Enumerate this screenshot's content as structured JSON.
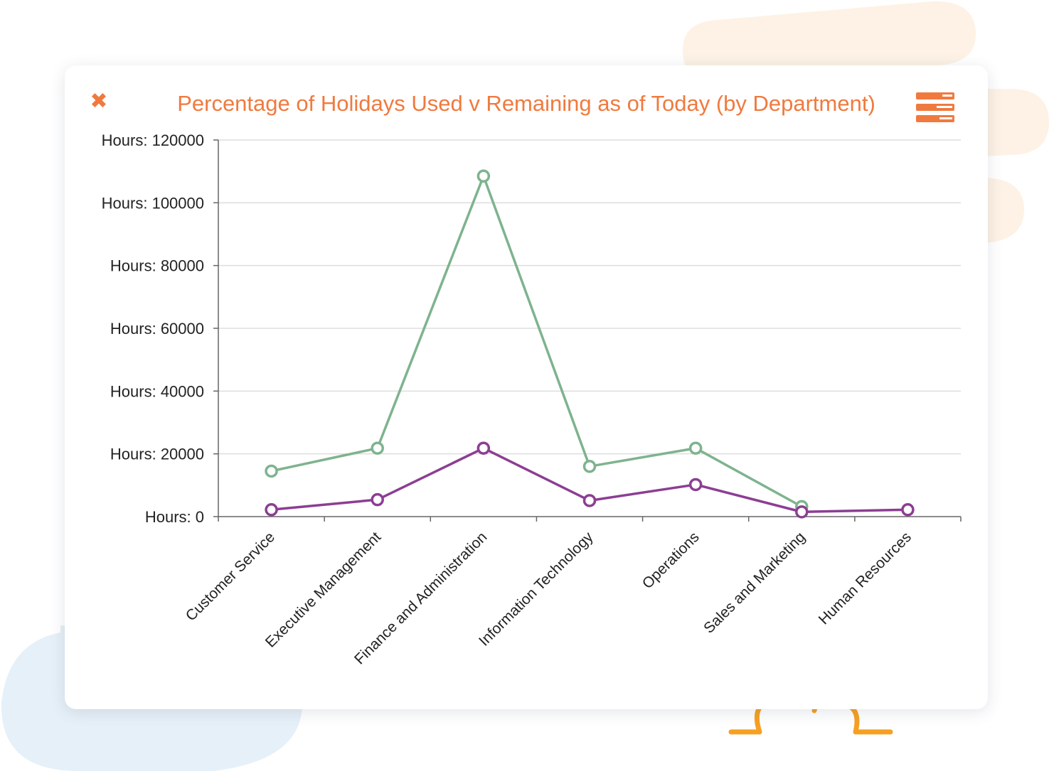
{
  "header": {
    "title": "Percentage of Holidays Used v Remaining as of Today (by Department)",
    "close_icon": "close-icon",
    "menu_icon": "menu-icon"
  },
  "colors": {
    "accent": "#f07a3e",
    "series_1": "#7eb38e",
    "series_2": "#8c3e93",
    "gridline": "#dddddd",
    "axis": "#666666"
  },
  "chart_data": {
    "type": "line",
    "title": "Percentage of Holidays Used v Remaining as of Today (by Department)",
    "categories": [
      "Customer Service",
      "Executive Management",
      "Finance and Administration",
      "Information Technology",
      "Operations",
      "Sales and Marketing",
      "Human Resources"
    ],
    "y_ticks": [
      0,
      20000,
      40000,
      60000,
      80000,
      100000,
      120000
    ],
    "y_tick_prefix": "Hours: ",
    "ylim": [
      0,
      120000
    ],
    "grid": true,
    "series": [
      {
        "values": [
          14500,
          21800,
          108500,
          16000,
          21800,
          3200,
          null
        ]
      },
      {
        "values": [
          2200,
          5400,
          21800,
          5100,
          10200,
          1500,
          2200
        ]
      }
    ]
  }
}
